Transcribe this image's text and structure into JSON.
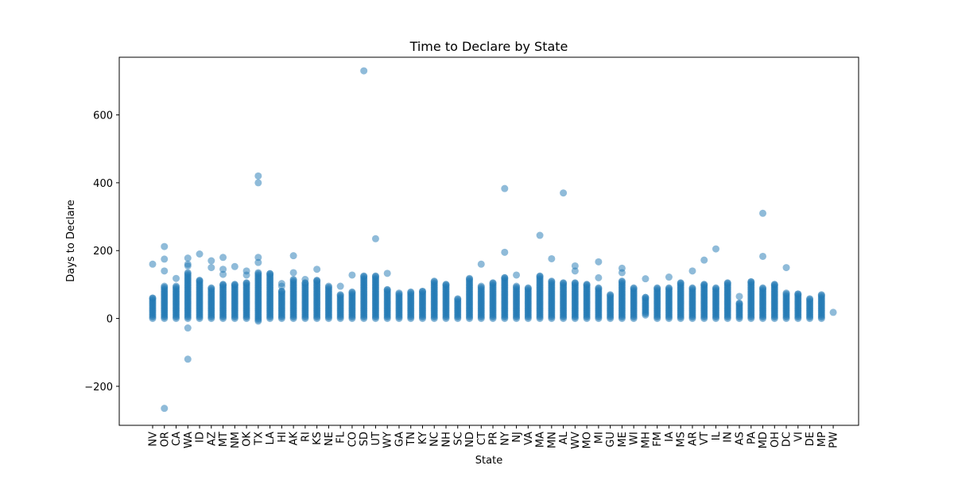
{
  "chart_data": {
    "type": "scatter",
    "title": "Time to Declare by State",
    "xlabel": "State",
    "ylabel": "Days to Declare",
    "ylim": [
      -315,
      770
    ],
    "yticks": [
      -200,
      0,
      200,
      400,
      600
    ],
    "grid": false,
    "marker_color": "#1f77b4",
    "categories": [
      "NV",
      "OR",
      "CA",
      "WA",
      "ID",
      "AZ",
      "MT",
      "NM",
      "OK",
      "TX",
      "LA",
      "HI",
      "AK",
      "RI",
      "KS",
      "NE",
      "FL",
      "CO",
      "SD",
      "UT",
      "WY",
      "GA",
      "TN",
      "KY",
      "NC",
      "NH",
      "SC",
      "ND",
      "CT",
      "PR",
      "NY",
      "NJ",
      "VA",
      "MA",
      "MN",
      "AL",
      "WV",
      "MO",
      "MI",
      "GU",
      "ME",
      "WI",
      "MH",
      "FM",
      "IA",
      "MS",
      "AR",
      "VT",
      "IL",
      "IN",
      "AS",
      "PA",
      "MD",
      "OH",
      "DC",
      "VI",
      "DE",
      "MP",
      "PW"
    ],
    "series": [
      {
        "points": [
          {
            "x": "NV",
            "y": [
              0,
              60
            ]
          },
          {
            "x": "NV",
            "y": 160
          },
          {
            "x": "OR",
            "y": [
              0,
              95
            ]
          },
          {
            "x": "OR",
            "y": 140
          },
          {
            "x": "OR",
            "y": 175
          },
          {
            "x": "OR",
            "y": 212
          },
          {
            "x": "OR",
            "y": -265
          },
          {
            "x": "CA",
            "y": [
              0,
              95
            ]
          },
          {
            "x": "CA",
            "y": 118
          },
          {
            "x": "WA",
            "y": [
              0,
              135
            ]
          },
          {
            "x": "WA",
            "y": 155
          },
          {
            "x": "WA",
            "y": 160
          },
          {
            "x": "WA",
            "y": 178
          },
          {
            "x": "WA",
            "y": -28
          },
          {
            "x": "WA",
            "y": -120
          },
          {
            "x": "ID",
            "y": [
              0,
              112
            ]
          },
          {
            "x": "ID",
            "y": 190
          },
          {
            "x": "AZ",
            "y": [
              0,
              90
            ]
          },
          {
            "x": "AZ",
            "y": 150
          },
          {
            "x": "AZ",
            "y": 170
          },
          {
            "x": "MT",
            "y": [
              0,
              100
            ]
          },
          {
            "x": "MT",
            "y": 130
          },
          {
            "x": "MT",
            "y": 145
          },
          {
            "x": "MT",
            "y": 180
          },
          {
            "x": "NM",
            "y": [
              0,
              100
            ]
          },
          {
            "x": "NM",
            "y": 153
          },
          {
            "x": "OK",
            "y": [
              0,
              105
            ]
          },
          {
            "x": "OK",
            "y": 128
          },
          {
            "x": "OK",
            "y": 140
          },
          {
            "x": "TX",
            "y": [
              -8,
              135
            ]
          },
          {
            "x": "TX",
            "y": 165
          },
          {
            "x": "TX",
            "y": 180
          },
          {
            "x": "TX",
            "y": 400
          },
          {
            "x": "TX",
            "y": 420
          },
          {
            "x": "LA",
            "y": [
              0,
              132
            ]
          },
          {
            "x": "HI",
            "y": [
              0,
              80
            ]
          },
          {
            "x": "HI",
            "y": 95
          },
          {
            "x": "HI",
            "y": 103
          },
          {
            "x": "AK",
            "y": [
              0,
              115
            ]
          },
          {
            "x": "AK",
            "y": 135
          },
          {
            "x": "AK",
            "y": 185
          },
          {
            "x": "RI",
            "y": [
              0,
              105
            ]
          },
          {
            "x": "RI",
            "y": 115
          },
          {
            "x": "KS",
            "y": [
              0,
              112
            ]
          },
          {
            "x": "KS",
            "y": 145
          },
          {
            "x": "NE",
            "y": [
              0,
              95
            ]
          },
          {
            "x": "FL",
            "y": [
              0,
              70
            ]
          },
          {
            "x": "FL",
            "y": 95
          },
          {
            "x": "CO",
            "y": [
              0,
              78
            ]
          },
          {
            "x": "CO",
            "y": 128
          },
          {
            "x": "SD",
            "y": [
              0,
              125
            ]
          },
          {
            "x": "SD",
            "y": 730
          },
          {
            "x": "UT",
            "y": [
              0,
              125
            ]
          },
          {
            "x": "UT",
            "y": 235
          },
          {
            "x": "WY",
            "y": [
              0,
              85
            ]
          },
          {
            "x": "WY",
            "y": 133
          },
          {
            "x": "GA",
            "y": [
              0,
              75
            ]
          },
          {
            "x": "TN",
            "y": [
              0,
              78
            ]
          },
          {
            "x": "KY",
            "y": [
              0,
              80
            ]
          },
          {
            "x": "NC",
            "y": [
              0,
              110
            ]
          },
          {
            "x": "NH",
            "y": [
              0,
              100
            ]
          },
          {
            "x": "SC",
            "y": [
              0,
              58
            ]
          },
          {
            "x": "ND",
            "y": [
              0,
              118
            ]
          },
          {
            "x": "CT",
            "y": [
              0,
              95
            ]
          },
          {
            "x": "CT",
            "y": 160
          },
          {
            "x": "PR",
            "y": [
              0,
              105
            ]
          },
          {
            "x": "NY",
            "y": [
              0,
              120
            ]
          },
          {
            "x": "NY",
            "y": 195
          },
          {
            "x": "NY",
            "y": 383
          },
          {
            "x": "NJ",
            "y": [
              0,
              95
            ]
          },
          {
            "x": "NJ",
            "y": 128
          },
          {
            "x": "VA",
            "y": [
              0,
              90
            ]
          },
          {
            "x": "MA",
            "y": [
              0,
              125
            ]
          },
          {
            "x": "MA",
            "y": 245
          },
          {
            "x": "MN",
            "y": [
              0,
              110
            ]
          },
          {
            "x": "MN",
            "y": 176
          },
          {
            "x": "AL",
            "y": [
              0,
              105
            ]
          },
          {
            "x": "AL",
            "y": 370
          },
          {
            "x": "WV",
            "y": [
              0,
              105
            ]
          },
          {
            "x": "WV",
            "y": 140
          },
          {
            "x": "WV",
            "y": 155
          },
          {
            "x": "MO",
            "y": [
              0,
              100
            ]
          },
          {
            "x": "MI",
            "y": [
              0,
              90
            ]
          },
          {
            "x": "MI",
            "y": 120
          },
          {
            "x": "MI",
            "y": 167
          },
          {
            "x": "GU",
            "y": [
              0,
              70
            ]
          },
          {
            "x": "ME",
            "y": [
              0,
              110
            ]
          },
          {
            "x": "ME",
            "y": 135
          },
          {
            "x": "ME",
            "y": 148
          },
          {
            "x": "WI",
            "y": [
              0,
              90
            ]
          },
          {
            "x": "MH",
            "y": [
              10,
              62
            ]
          },
          {
            "x": "MH",
            "y": 117
          },
          {
            "x": "FM",
            "y": [
              0,
              90
            ]
          },
          {
            "x": "IA",
            "y": [
              0,
              90
            ]
          },
          {
            "x": "IA",
            "y": 122
          },
          {
            "x": "MS",
            "y": [
              0,
              105
            ]
          },
          {
            "x": "AR",
            "y": [
              0,
              90
            ]
          },
          {
            "x": "AR",
            "y": 140
          },
          {
            "x": "VT",
            "y": [
              0,
              100
            ]
          },
          {
            "x": "VT",
            "y": 172
          },
          {
            "x": "IL",
            "y": [
              0,
              90
            ]
          },
          {
            "x": "IL",
            "y": 205
          },
          {
            "x": "IN",
            "y": [
              0,
              105
            ]
          },
          {
            "x": "AS",
            "y": [
              0,
              45
            ]
          },
          {
            "x": "AS",
            "y": 65
          },
          {
            "x": "PA",
            "y": [
              0,
              108
            ]
          },
          {
            "x": "MD",
            "y": [
              0,
              90
            ]
          },
          {
            "x": "MD",
            "y": 183
          },
          {
            "x": "MD",
            "y": 310
          },
          {
            "x": "OH",
            "y": [
              0,
              100
            ]
          },
          {
            "x": "DC",
            "y": [
              0,
              75
            ]
          },
          {
            "x": "DC",
            "y": 150
          },
          {
            "x": "VI",
            "y": [
              0,
              72
            ]
          },
          {
            "x": "DE",
            "y": [
              0,
              58
            ]
          },
          {
            "x": "MP",
            "y": [
              0,
              70
            ]
          },
          {
            "x": "PW",
            "y": 18
          }
        ]
      }
    ]
  }
}
